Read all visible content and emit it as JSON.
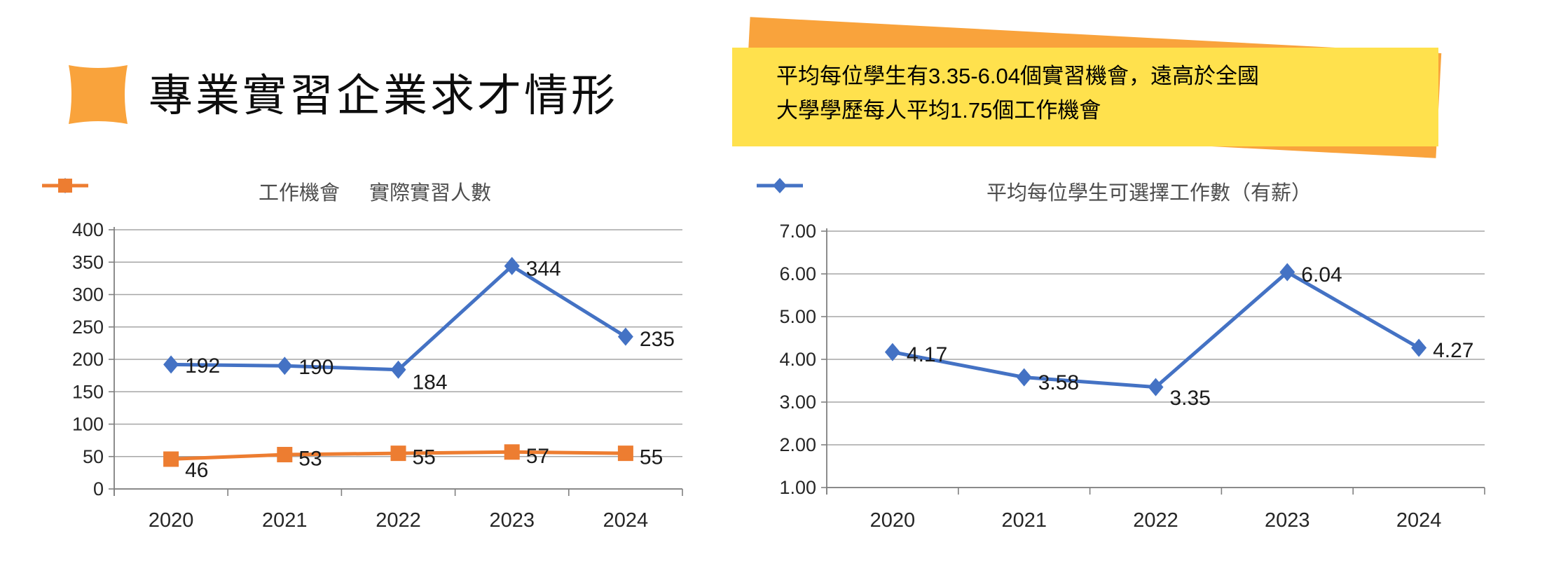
{
  "header": {
    "title": "專業實習企業求才情形",
    "icon": "pillow-square-icon",
    "icon_color": "#F9A33C"
  },
  "callout": {
    "line1": "平均每位學生有3.35-6.04個實習機會，遠高於全國",
    "line2": "大學學歷每人平均1.75個工作機會",
    "front_color": "#FFE14D",
    "back_color": "#F9A33C",
    "text_color": "#000000"
  },
  "colors": {
    "series_blue": "#4472C4",
    "series_orange": "#ED7D31",
    "gridline": "#A6A6A6",
    "axis": "#808080",
    "tick_label": "#262626",
    "data_label": "#1A1A1A",
    "legend_text": "#4D4D4D"
  },
  "chart_data": [
    {
      "type": "line",
      "title": "",
      "xlabel": "",
      "ylabel": "",
      "categories": [
        "2020",
        "2021",
        "2022",
        "2023",
        "2024"
      ],
      "series": [
        {
          "name": "工作機會",
          "values": [
            192,
            190,
            184,
            344,
            235
          ],
          "color": "#4472C4",
          "marker": "diamond",
          "label_dy": [
            2,
            2,
            18,
            4,
            4
          ]
        },
        {
          "name": "實際實習人數",
          "values": [
            46,
            53,
            55,
            57,
            55
          ],
          "color": "#ED7D31",
          "marker": "square",
          "label_dy": [
            16,
            6,
            6,
            6,
            6
          ]
        }
      ],
      "ylim": [
        0,
        400
      ],
      "ytick_step": 50,
      "y_format": "int",
      "grid": true,
      "legend_position": "top"
    },
    {
      "type": "line",
      "title": "",
      "xlabel": "",
      "ylabel": "",
      "categories": [
        "2020",
        "2021",
        "2022",
        "2023",
        "2024"
      ],
      "series": [
        {
          "name": "平均每位學生可選擇工作數（有薪）",
          "values": [
            4.17,
            3.58,
            3.35,
            6.04,
            4.27
          ],
          "color": "#4472C4",
          "marker": "diamond",
          "label_dy": [
            4,
            8,
            16,
            4,
            4
          ]
        }
      ],
      "ylim": [
        1,
        7
      ],
      "ytick_step": 1,
      "y_format": "2dp",
      "grid": true,
      "legend_position": "top"
    }
  ]
}
